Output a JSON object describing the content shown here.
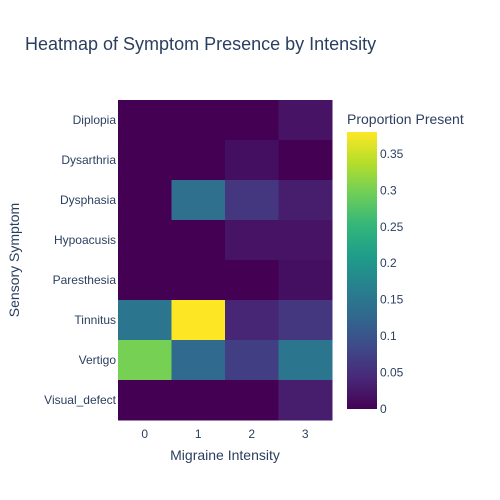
{
  "chart_data": {
    "type": "heatmap",
    "title": "Heatmap of Symptom Presence by Intensity",
    "xlabel": "Migraine Intensity",
    "ylabel": "Sensory Symptom",
    "x": [
      "0",
      "1",
      "2",
      "3"
    ],
    "y": [
      "Diplopia",
      "Dysarthria",
      "Dysphasia",
      "Hypoacusis",
      "Paresthesia",
      "Tinnitus",
      "Vertigo",
      "Visual_defect"
    ],
    "z": [
      [
        0.0,
        0.0,
        0.0,
        0.02
      ],
      [
        0.0,
        0.0,
        0.015,
        0.0
      ],
      [
        0.0,
        0.14,
        0.06,
        0.03
      ],
      [
        0.0,
        0.0,
        0.02,
        0.02
      ],
      [
        0.0,
        0.0,
        0.0,
        0.015
      ],
      [
        0.15,
        0.38,
        0.04,
        0.06
      ],
      [
        0.3,
        0.13,
        0.07,
        0.15
      ],
      [
        0.0,
        0.0,
        0.0,
        0.03
      ]
    ],
    "colorscale": "Viridis",
    "zlim": [
      0,
      0.38
    ],
    "colorbar": {
      "title": "Proportion Present",
      "ticks": [
        "0",
        "0.05",
        "0.1",
        "0.15",
        "0.2",
        "0.25",
        "0.3",
        "0.35"
      ],
      "tick_values": [
        0,
        0.05,
        0.1,
        0.15,
        0.2,
        0.25,
        0.3,
        0.35
      ]
    }
  }
}
